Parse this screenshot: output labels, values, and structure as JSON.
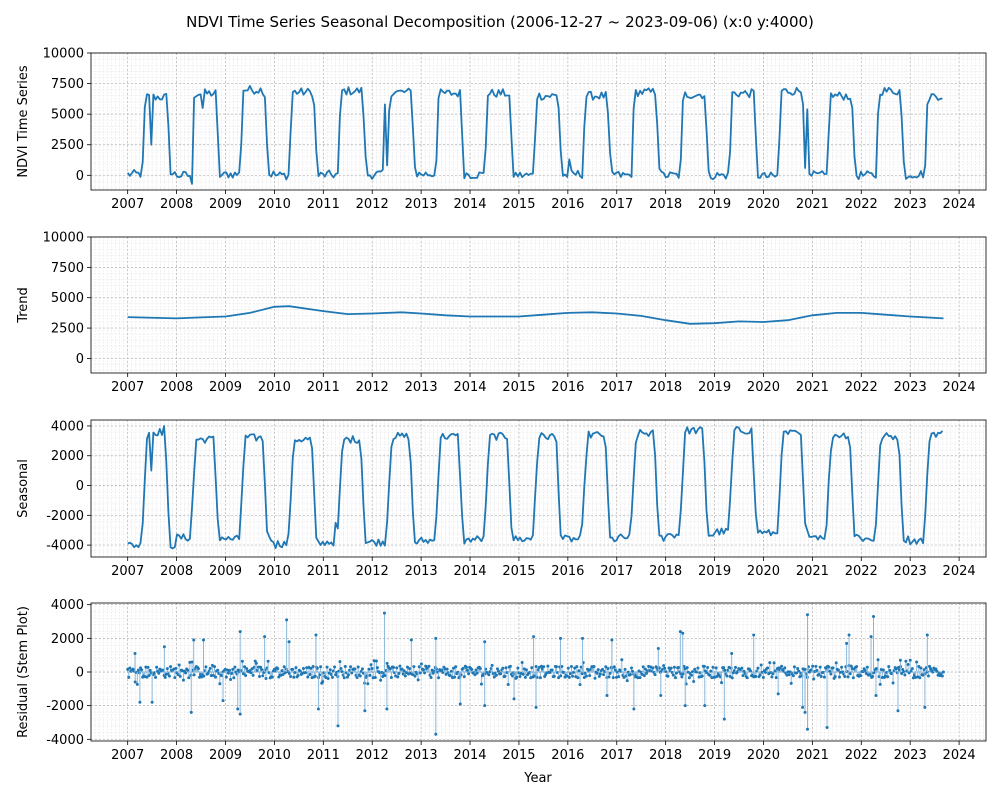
{
  "figure": {
    "title": "NDVI Time Series Seasonal Decomposition (2006-12-27 ~ 2023-09-06) (x:0 y:4000)",
    "xlabel": "Year",
    "line_color": "#1f77b4",
    "stem_color": "#8ab8dc"
  },
  "chart_data": [
    {
      "type": "line",
      "panel": "ndvi",
      "ylabel": "NDVI Time Series",
      "ylim": [
        -1200,
        10000
      ],
      "yticks": [
        0,
        2500,
        5000,
        7500,
        10000
      ],
      "xlim": [
        2006.25,
        2024.55
      ],
      "xticks": [
        2007,
        2008,
        2009,
        2010,
        2011,
        2012,
        2013,
        2014,
        2015,
        2016,
        2017,
        2018,
        2019,
        2020,
        2021,
        2022,
        2023,
        2024
      ],
      "grid": true,
      "model": "year_cycle",
      "season": {
        "rise_start": 0.3,
        "rise_end": 0.36,
        "fall_start": 0.8,
        "fall_end": 0.88
      },
      "years": [
        {
          "year": 2007,
          "low": 100,
          "high": 6400
        },
        {
          "year": 2008,
          "low": 0,
          "high": 6700
        },
        {
          "year": 2009,
          "low": 100,
          "high": 7000
        },
        {
          "year": 2010,
          "low": 0,
          "high": 6800
        },
        {
          "year": 2011,
          "low": 50,
          "high": 6900
        },
        {
          "year": 2012,
          "low": 100,
          "high": 6800
        },
        {
          "year": 2013,
          "low": 100,
          "high": 6700
        },
        {
          "year": 2014,
          "low": 50,
          "high": 6700
        },
        {
          "year": 2015,
          "low": 0,
          "high": 6500
        },
        {
          "year": 2016,
          "low": 100,
          "high": 6500
        },
        {
          "year": 2017,
          "low": 0,
          "high": 6800
        },
        {
          "year": 2018,
          "low": 0,
          "high": 6600
        },
        {
          "year": 2019,
          "low": 0,
          "high": 6700
        },
        {
          "year": 2020,
          "low": -100,
          "high": 6900
        },
        {
          "year": 2021,
          "low": 0,
          "high": 6500
        },
        {
          "year": 2022,
          "low": 0,
          "high": 6900
        },
        {
          "year": 2023,
          "low": 100,
          "high": 6500
        }
      ],
      "spikes": [
        {
          "x": 2007.45,
          "y": 2500
        },
        {
          "x": 2008.52,
          "y": 5500
        },
        {
          "x": 2012.25,
          "y": 5800
        },
        {
          "x": 2016.02,
          "y": 1300
        },
        {
          "x": 2020.82,
          "y": 600
        },
        {
          "x": 2020.86,
          "y": 5400
        },
        {
          "x": 2008.3,
          "y": -700
        }
      ],
      "x_end": 2023.68
    },
    {
      "type": "line",
      "panel": "trend",
      "ylabel": "Trend",
      "ylim": [
        -1200,
        10000
      ],
      "yticks": [
        0,
        2500,
        5000,
        7500,
        10000
      ],
      "xlim": [
        2006.25,
        2024.55
      ],
      "xticks": [
        2007,
        2008,
        2009,
        2010,
        2011,
        2012,
        2013,
        2014,
        2015,
        2016,
        2017,
        2018,
        2019,
        2020,
        2021,
        2022,
        2023,
        2024
      ],
      "grid": true,
      "x": [
        2007.0,
        2008.0,
        2008.5,
        2009.0,
        2009.5,
        2010.0,
        2010.3,
        2011.0,
        2011.5,
        2012.0,
        2012.6,
        2013.0,
        2013.5,
        2014.0,
        2015.0,
        2015.5,
        2016.0,
        2016.5,
        2017.0,
        2017.5,
        2018.0,
        2018.5,
        2019.0,
        2019.5,
        2020.0,
        2020.5,
        2021.0,
        2021.5,
        2022.0,
        2022.5,
        2023.0,
        2023.68
      ],
      "y": [
        3400,
        3300,
        3380,
        3450,
        3750,
        4250,
        4300,
        3900,
        3650,
        3700,
        3800,
        3700,
        3550,
        3450,
        3450,
        3600,
        3750,
        3800,
        3700,
        3500,
        3150,
        2850,
        2900,
        3050,
        3000,
        3150,
        3550,
        3750,
        3750,
        3600,
        3450,
        3300
      ]
    },
    {
      "type": "line",
      "panel": "seasonal",
      "ylabel": "Seasonal",
      "ylim": [
        -4800,
        4400
      ],
      "yticks": [
        -4000,
        -2000,
        0,
        2000,
        4000
      ],
      "xlim": [
        2006.25,
        2024.55
      ],
      "xticks": [
        2007,
        2008,
        2009,
        2010,
        2011,
        2012,
        2013,
        2014,
        2015,
        2016,
        2017,
        2018,
        2019,
        2020,
        2021,
        2022,
        2023,
        2024
      ],
      "grid": true,
      "model": "year_cycle",
      "season": {
        "rise_start": 0.28,
        "rise_end": 0.4,
        "fall_start": 0.76,
        "fall_end": 0.86
      },
      "years": [
        {
          "year": 2007,
          "low": -4000,
          "high": 3600
        },
        {
          "year": 2008,
          "low": -3500,
          "high": 3100
        },
        {
          "year": 2009,
          "low": -3600,
          "high": 3200
        },
        {
          "year": 2010,
          "low": -3900,
          "high": 3100
        },
        {
          "year": 2011,
          "low": -3800,
          "high": 3100
        },
        {
          "year": 2012,
          "low": -3800,
          "high": 3300
        },
        {
          "year": 2013,
          "low": -3700,
          "high": 3300
        },
        {
          "year": 2014,
          "low": -3600,
          "high": 3300
        },
        {
          "year": 2015,
          "low": -3600,
          "high": 3300
        },
        {
          "year": 2016,
          "low": -3600,
          "high": 3400
        },
        {
          "year": 2017,
          "low": -3500,
          "high": 3500
        },
        {
          "year": 2018,
          "low": -3300,
          "high": 3700
        },
        {
          "year": 2019,
          "low": -3100,
          "high": 3700
        },
        {
          "year": 2020,
          "low": -3200,
          "high": 3500
        },
        {
          "year": 2021,
          "low": -3400,
          "high": 3400
        },
        {
          "year": 2022,
          "low": -3600,
          "high": 3300
        },
        {
          "year": 2023,
          "low": -3700,
          "high": 3500
        }
      ],
      "spikes": [
        {
          "x": 2007.47,
          "y": 1000
        },
        {
          "x": 2007.72,
          "y": 4000
        },
        {
          "x": 2010.02,
          "y": -4200
        },
        {
          "x": 2011.25,
          "y": -2500
        },
        {
          "x": 2021.33,
          "y": 300
        }
      ],
      "x_end": 2023.68
    },
    {
      "type": "stem",
      "panel": "residual",
      "ylabel": "Residual (Stem Plot)",
      "ylim": [
        -4100,
        4100
      ],
      "yticks": [
        -4000,
        -2000,
        0,
        2000,
        4000
      ],
      "xlim": [
        2006.25,
        2024.55
      ],
      "xticks": [
        2007,
        2008,
        2009,
        2010,
        2011,
        2012,
        2013,
        2014,
        2015,
        2016,
        2017,
        2018,
        2019,
        2020,
        2021,
        2022,
        2023,
        2024
      ],
      "grid": true,
      "x_start": 2007.0,
      "x_end": 2023.68,
      "step_days": 8,
      "large": [
        {
          "x": 2007.15,
          "y": 1100
        },
        {
          "x": 2007.25,
          "y": -1800
        },
        {
          "x": 2007.5,
          "y": -1800
        },
        {
          "x": 2007.75,
          "y": 1500
        },
        {
          "x": 2008.3,
          "y": -2400
        },
        {
          "x": 2008.35,
          "y": 1900
        },
        {
          "x": 2008.55,
          "y": 1900
        },
        {
          "x": 2008.95,
          "y": -1700
        },
        {
          "x": 2009.25,
          "y": -2200
        },
        {
          "x": 2009.3,
          "y": -2500
        },
        {
          "x": 2009.3,
          "y": 2400
        },
        {
          "x": 2009.8,
          "y": 2100
        },
        {
          "x": 2010.25,
          "y": 3100
        },
        {
          "x": 2010.3,
          "y": 1800
        },
        {
          "x": 2010.85,
          "y": 2200
        },
        {
          "x": 2010.9,
          "y": -2200
        },
        {
          "x": 2011.3,
          "y": -3200
        },
        {
          "x": 2011.85,
          "y": -2300
        },
        {
          "x": 2012.25,
          "y": 3500
        },
        {
          "x": 2012.3,
          "y": -2200
        },
        {
          "x": 2012.8,
          "y": 1900
        },
        {
          "x": 2013.3,
          "y": -3700
        },
        {
          "x": 2013.3,
          "y": 2000
        },
        {
          "x": 2013.8,
          "y": -1900
        },
        {
          "x": 2014.3,
          "y": -2000
        },
        {
          "x": 2014.3,
          "y": 1800
        },
        {
          "x": 2014.9,
          "y": -1600
        },
        {
          "x": 2015.3,
          "y": 2100
        },
        {
          "x": 2015.35,
          "y": -2100
        },
        {
          "x": 2015.85,
          "y": 2000
        },
        {
          "x": 2016.3,
          "y": 2000
        },
        {
          "x": 2016.8,
          "y": -1400
        },
        {
          "x": 2016.9,
          "y": 1900
        },
        {
          "x": 2017.35,
          "y": -2200
        },
        {
          "x": 2017.85,
          "y": 1400
        },
        {
          "x": 2017.9,
          "y": -1400
        },
        {
          "x": 2018.3,
          "y": 2400
        },
        {
          "x": 2018.35,
          "y": 2300
        },
        {
          "x": 2018.4,
          "y": -2000
        },
        {
          "x": 2018.8,
          "y": -2000
        },
        {
          "x": 2019.2,
          "y": -2800
        },
        {
          "x": 2019.35,
          "y": 1100
        },
        {
          "x": 2019.8,
          "y": 2200
        },
        {
          "x": 2020.3,
          "y": -1300
        },
        {
          "x": 2020.8,
          "y": -2100
        },
        {
          "x": 2020.85,
          "y": -2400
        },
        {
          "x": 2020.9,
          "y": 3400
        },
        {
          "x": 2020.9,
          "y": -3400
        },
        {
          "x": 2021.3,
          "y": -3300
        },
        {
          "x": 2021.7,
          "y": 1700
        },
        {
          "x": 2021.75,
          "y": 2200
        },
        {
          "x": 2022.2,
          "y": 2100
        },
        {
          "x": 2022.25,
          "y": 3300
        },
        {
          "x": 2022.3,
          "y": -1400
        },
        {
          "x": 2022.75,
          "y": -2300
        },
        {
          "x": 2022.8,
          "y": 700
        },
        {
          "x": 2023.3,
          "y": -2100
        },
        {
          "x": 2023.35,
          "y": 2200
        }
      ]
    }
  ]
}
